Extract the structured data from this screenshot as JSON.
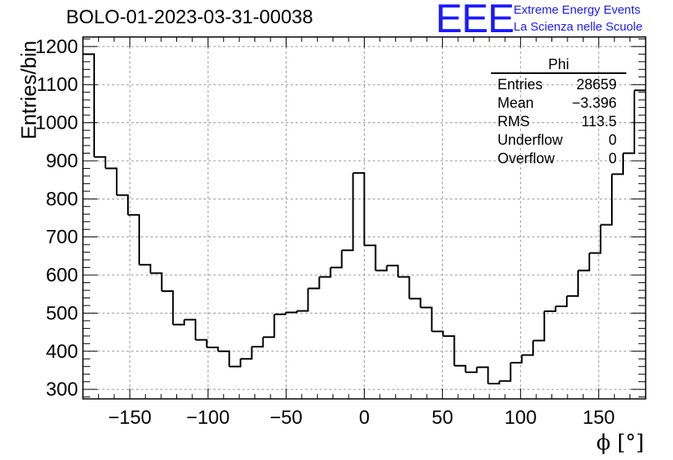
{
  "header": {
    "title": "BOLO-01-2023-03-31-00038",
    "logo_text": "EEE",
    "logo_line1": "Extreme Energy Events",
    "logo_line2": "La Scienza nelle Scuole"
  },
  "stats_box": {
    "title": "Phi",
    "rows": [
      {
        "label": "Entries",
        "value": "28659"
      },
      {
        "label": "Mean",
        "value": "−3.396"
      },
      {
        "label": "RMS",
        "value": "113.5"
      },
      {
        "label": "Underflow",
        "value": "0"
      },
      {
        "label": "Overflow",
        "value": "0"
      }
    ]
  },
  "chart_data": {
    "type": "histogram",
    "title": "BOLO-01-2023-03-31-00038",
    "xlabel": "ϕ [°]",
    "ylabel": "Entries/bin",
    "xlim": [
      -180,
      180
    ],
    "ylim": [
      275,
      1225
    ],
    "bin_width": 7.2,
    "x_ticks": [
      -150,
      -100,
      -50,
      0,
      50,
      100,
      150
    ],
    "x_tick_labels": [
      "−150",
      "−100",
      "−50",
      "0",
      "50",
      "100",
      "150"
    ],
    "y_ticks": [
      300,
      400,
      500,
      600,
      700,
      800,
      900,
      1000,
      1100,
      1200
    ],
    "grid": true,
    "color": "#000000",
    "values": [
      1180,
      910,
      880,
      810,
      758,
      627,
      605,
      558,
      470,
      483,
      430,
      410,
      400,
      360,
      380,
      412,
      437,
      497,
      502,
      506,
      565,
      595,
      620,
      665,
      868,
      678,
      612,
      625,
      595,
      538,
      515,
      452,
      440,
      362,
      345,
      358,
      315,
      322,
      370,
      390,
      428,
      505,
      518,
      545,
      612,
      658,
      732,
      865,
      920,
      1085
    ]
  }
}
